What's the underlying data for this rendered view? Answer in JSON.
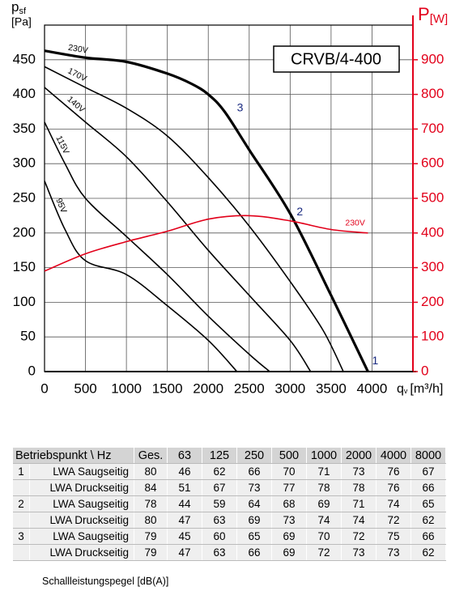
{
  "chart_data": {
    "type": "line",
    "title": "CRVB/4-400",
    "ylabel": {
      "main": "p",
      "sub": "sf",
      "unit": "[Pa]"
    },
    "y2label": {
      "main": "P",
      "sub": "[W]"
    },
    "xlabel": {
      "main": "q",
      "sub": "v",
      "unit": "[m³/h]"
    },
    "xlim": [
      0,
      4500
    ],
    "xticks": [
      0,
      500,
      1000,
      1500,
      2000,
      2500,
      3000,
      3500,
      4000
    ],
    "ylim": [
      0,
      500
    ],
    "yticks": [
      0,
      50,
      100,
      150,
      200,
      250,
      300,
      350,
      400,
      450
    ],
    "y2lim": [
      0,
      1000
    ],
    "y2ticks": [
      0,
      100,
      200,
      300,
      400,
      500,
      600,
      700,
      800,
      900
    ],
    "grid": true,
    "y2color": "#e2001a",
    "series": [
      {
        "name": "230V",
        "color": "#000000",
        "bold": true,
        "x": [
          0,
          500,
          1000,
          1500,
          1800,
          2000,
          2200,
          2500,
          3000,
          3500,
          3950
        ],
        "values": [
          463,
          453,
          447,
          430,
          415,
          400,
          375,
          320,
          228,
          110,
          0
        ]
      },
      {
        "name": "170V",
        "color": "#000000",
        "x": [
          0,
          500,
          1000,
          1500,
          2000,
          2500,
          3000,
          3400,
          3650
        ],
        "values": [
          440,
          410,
          380,
          340,
          280,
          210,
          130,
          60,
          0
        ]
      },
      {
        "name": "140V",
        "color": "#000000",
        "x": [
          0,
          500,
          1000,
          1500,
          2000,
          2500,
          3000,
          3250
        ],
        "values": [
          410,
          360,
          310,
          245,
          175,
          110,
          45,
          0
        ]
      },
      {
        "name": "115V",
        "color": "#000000",
        "x": [
          0,
          250,
          500,
          1000,
          1500,
          2000,
          2500,
          2750
        ],
        "values": [
          360,
          300,
          250,
          195,
          140,
          80,
          25,
          0
        ]
      },
      {
        "name": "95V",
        "color": "#000000",
        "x": [
          0,
          250,
          500,
          1000,
          1500,
          2000,
          2350
        ],
        "values": [
          275,
          205,
          160,
          140,
          95,
          45,
          0
        ]
      },
      {
        "name": "230V",
        "color": "#e2001a",
        "axis": "y2",
        "x": [
          0,
          500,
          1000,
          1500,
          2000,
          2500,
          3000,
          3500,
          3950
        ],
        "values": [
          290,
          340,
          375,
          405,
          440,
          450,
          435,
          410,
          400
        ]
      }
    ],
    "annotations": [
      {
        "text": "3",
        "x": 2350,
        "y": 380
      },
      {
        "text": "2",
        "x": 3080,
        "y": 230
      },
      {
        "text": "1",
        "x": 4000,
        "y": 15
      }
    ]
  },
  "table": {
    "header": [
      "Betriebspunkt \\ Hz",
      "Ges.",
      "63",
      "125",
      "250",
      "500",
      "1000",
      "2000",
      "4000",
      "8000"
    ],
    "rows": [
      {
        "point": "1",
        "label": "LWA Saugseitig",
        "values": [
          80,
          46,
          62,
          66,
          70,
          71,
          73,
          76,
          67
        ]
      },
      {
        "point": null,
        "label": "LWA Druckseitig",
        "values": [
          84,
          51,
          67,
          73,
          77,
          78,
          78,
          76,
          66
        ]
      },
      {
        "point": "2",
        "label": "LWA Saugseitig",
        "values": [
          78,
          44,
          59,
          64,
          68,
          69,
          71,
          74,
          65
        ]
      },
      {
        "point": null,
        "label": "LWA Druckseitig",
        "values": [
          80,
          47,
          63,
          69,
          73,
          74,
          74,
          72,
          62
        ]
      },
      {
        "point": "3",
        "label": "LWA Saugseitig",
        "values": [
          79,
          45,
          60,
          65,
          69,
          70,
          72,
          75,
          66
        ]
      },
      {
        "point": null,
        "label": "LWA Druckseitig",
        "values": [
          79,
          47,
          63,
          66,
          69,
          72,
          73,
          73,
          62
        ]
      }
    ],
    "footer": "Schallleistungspegel [dB(A)]"
  }
}
